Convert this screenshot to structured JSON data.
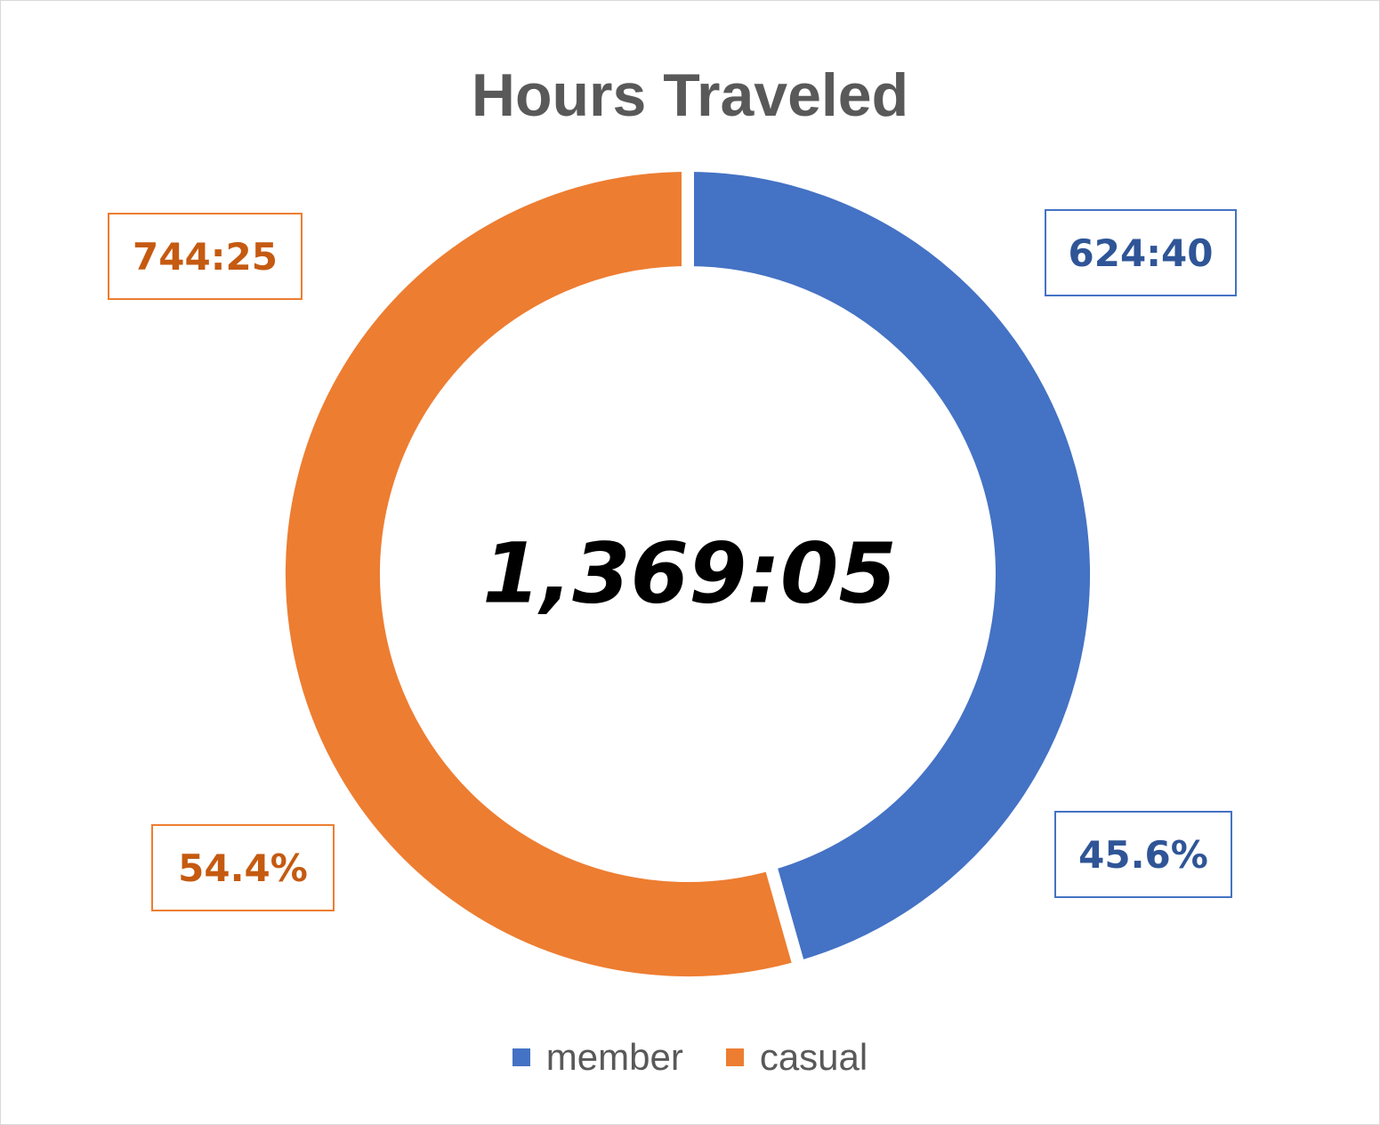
{
  "chart_data": {
    "type": "pie",
    "title": "Hours Traveled",
    "center_label": "1,369:05",
    "series": [
      {
        "name": "member",
        "value_label": "624:40",
        "percent_label": "45.6%",
        "percent": 45.6,
        "hours": 624.67,
        "color": "#4472C4",
        "label_color": "#2F5597"
      },
      {
        "name": "casual",
        "value_label": "744:25",
        "percent_label": "54.4%",
        "percent": 54.4,
        "hours": 744.42,
        "color": "#ED7D31",
        "label_color": "#C55A11"
      }
    ],
    "legend_position": "bottom"
  }
}
